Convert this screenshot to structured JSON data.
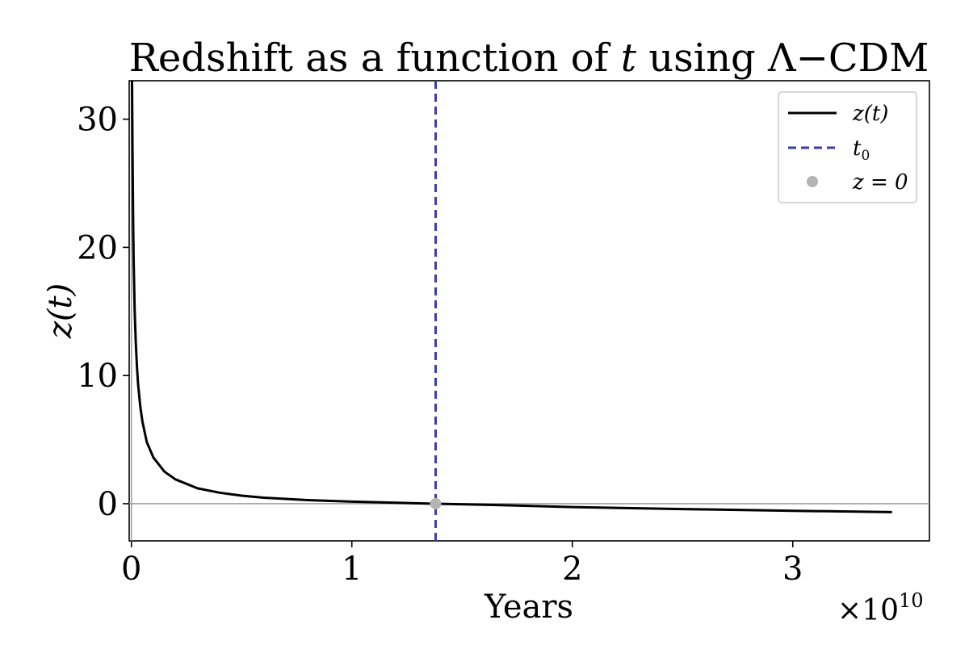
{
  "chart_data": {
    "type": "line",
    "title_text": "Redshift as a function of ",
    "title_var": "t",
    "title_tail": " using Λ−CDM",
    "xlabel": "Years",
    "ylabel": "z(t)",
    "x_multiplier": "×10",
    "x_multiplier_exp": "10",
    "x_scale": 10000000000,
    "xlim": [
      -100000000,
      36200000000
    ],
    "ylim": [
      -2.9,
      33
    ],
    "xticks": [
      0,
      10000000000,
      20000000000,
      30000000000
    ],
    "xtick_labels": [
      "0",
      "1",
      "2",
      "3"
    ],
    "yticks": [
      0,
      10,
      20,
      30
    ],
    "ytick_labels": [
      "0",
      "10",
      "20",
      "30"
    ],
    "grid": false,
    "reference_lines": {
      "y0_axis_line": true,
      "x0_axis_line": true
    },
    "series": [
      {
        "name": "z(t)",
        "style": "solid",
        "color": "#000000",
        "x": [
          30000000,
          50000000,
          80000000,
          100000000,
          150000000,
          200000000,
          250000000,
          300000000,
          400000000,
          500000000,
          700000000,
          1000000000,
          1500000000,
          2000000000,
          3000000000,
          4000000000,
          5000000000,
          6000000000,
          8000000000,
          10000000000,
          12000000000,
          13800000000,
          16000000000,
          20000000000,
          25000000000,
          30000000000,
          34500000000
        ],
        "y": [
          33,
          27.5,
          22,
          19,
          15,
          12.5,
          10.7,
          9.4,
          7.6,
          6.4,
          4.8,
          3.6,
          2.5,
          1.9,
          1.2,
          0.86,
          0.63,
          0.47,
          0.28,
          0.16,
          0.07,
          0.0,
          -0.08,
          -0.26,
          -0.42,
          -0.55,
          -0.66
        ]
      }
    ],
    "vline": {
      "name": "t0",
      "x": 13800000000,
      "color": "#3c3ca5",
      "style": "dashed"
    },
    "marker": {
      "name": "z = 0",
      "x": 13800000000,
      "y": 0,
      "color": "#b4b4b4"
    },
    "legend": {
      "placement": "top-right",
      "entries": [
        {
          "label": "z(t)",
          "kind": "line",
          "color": "#000000"
        },
        {
          "label": "t",
          "sub": "0",
          "kind": "dashed",
          "color": "#3c3ca5"
        },
        {
          "label": "z = 0",
          "kind": "marker",
          "color": "#b4b4b4"
        }
      ]
    }
  }
}
